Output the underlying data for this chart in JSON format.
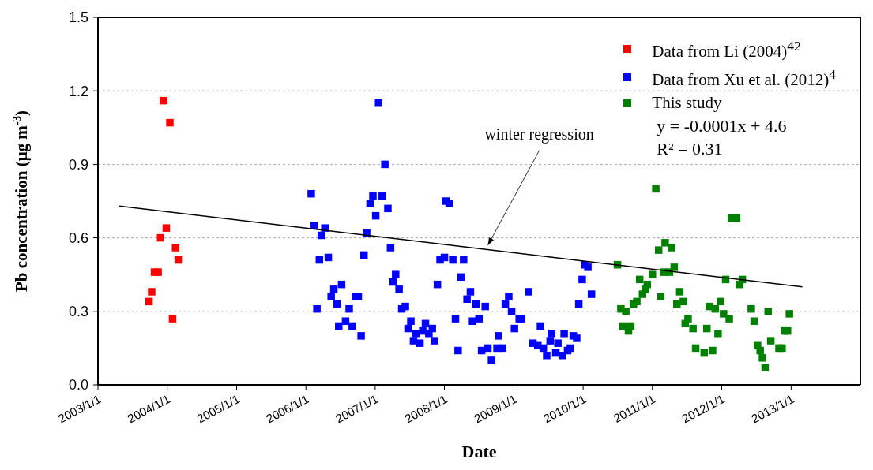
{
  "chart_data": {
    "type": "scatter",
    "xlabel": "Date",
    "ylabel": "Pb concentration (μg m$^{-3}$)",
    "xlim": [
      "2003-01-01",
      "2014-01-01"
    ],
    "xticks": [
      {
        "value": "2003-01-01",
        "label": "2003/1/1"
      },
      {
        "value": "2004-01-01",
        "label": "2004/1/1"
      },
      {
        "value": "2005-01-01",
        "label": "2005/1/1"
      },
      {
        "value": "2006-01-01",
        "label": "2006/1/1"
      },
      {
        "value": "2007-01-01",
        "label": "2007/1/1"
      },
      {
        "value": "2008-01-01",
        "label": "2008/1/1"
      },
      {
        "value": "2009-01-01",
        "label": "2009/1/1"
      },
      {
        "value": "2010-01-01",
        "label": "2010/1/1"
      },
      {
        "value": "2011-01-01",
        "label": "2011/1/1"
      },
      {
        "value": "2012-01-01",
        "label": "2012/1/1"
      },
      {
        "value": "2013-01-01",
        "label": "2013/1/1"
      }
    ],
    "ylim": [
      0,
      1.5
    ],
    "yticks": [
      {
        "value": 0,
        "label": "0.0"
      },
      0.3,
      0.6,
      0.9,
      1.2,
      1.5
    ],
    "grid": "y",
    "legend": "top right",
    "marker": "square",
    "series": [
      {
        "name": "Data from Li (2004)$^{42}$",
        "color": "#ff0000",
        "x": [
          "2003-09-27",
          "2003-10-11",
          "2003-10-26",
          "2003-11-14",
          "2003-11-27",
          "2003-12-13",
          "2003-12-27",
          "2004-01-15",
          "2004-01-29",
          "2004-02-14",
          "2004-02-28"
        ],
        "values": [
          0.34,
          0.38,
          0.46,
          0.46,
          0.6,
          1.16,
          0.64,
          1.07,
          0.27,
          0.56,
          0.51
        ]
      },
      {
        "name": "Data from Xu et al. (2012)$^{4}$",
        "color": "#0000ff",
        "x": [
          "2006-01-29",
          "2006-02-14",
          "2006-02-28",
          "2006-03-13",
          "2006-03-23",
          "2006-04-11",
          "2006-04-29",
          "2006-05-14",
          "2006-05-28",
          "2006-06-13",
          "2006-06-23",
          "2006-07-08",
          "2006-07-29",
          "2006-08-17",
          "2006-09-02",
          "2006-09-20",
          "2006-10-04",
          "2006-10-19",
          "2006-11-03",
          "2006-11-17",
          "2006-12-05",
          "2006-12-20",
          "2007-01-04",
          "2007-01-19",
          "2007-02-07",
          "2007-02-21",
          "2007-03-09",
          "2007-03-23",
          "2007-04-04",
          "2007-04-19",
          "2007-05-07",
          "2007-05-21",
          "2007-06-09",
          "2007-06-23",
          "2007-07-08",
          "2007-07-22",
          "2007-08-03",
          "2007-08-25",
          "2007-09-09",
          "2007-09-23",
          "2007-10-11",
          "2007-10-29",
          "2007-11-10",
          "2007-11-25",
          "2007-12-09",
          "2008-01-01",
          "2008-01-08",
          "2008-01-26",
          "2008-02-14",
          "2008-02-28",
          "2008-03-13",
          "2008-03-27",
          "2008-04-11",
          "2008-04-29",
          "2008-05-17",
          "2008-05-28",
          "2008-06-16",
          "2008-07-01",
          "2008-07-15",
          "2008-08-03",
          "2008-08-17",
          "2008-09-05",
          "2008-10-04",
          "2008-10-11",
          "2008-11-03",
          "2008-11-17",
          "2008-12-05",
          "2008-12-20",
          "2009-01-04",
          "2009-01-29",
          "2009-02-10",
          "2009-03-20",
          "2009-04-11",
          "2009-05-07",
          "2009-05-21",
          "2009-06-05",
          "2009-06-23",
          "2009-07-11",
          "2009-07-19",
          "2009-08-10",
          "2009-08-21",
          "2009-09-13",
          "2009-09-23",
          "2009-10-11",
          "2009-10-26",
          "2009-11-10",
          "2009-11-28",
          "2009-12-09",
          "2009-12-27",
          "2010-01-08",
          "2010-01-26",
          "2010-02-14"
        ],
        "values": [
          0.78,
          0.65,
          0.31,
          0.51,
          0.61,
          0.64,
          0.52,
          0.36,
          0.39,
          0.33,
          0.24,
          0.41,
          0.26,
          0.31,
          0.24,
          0.36,
          0.36,
          0.2,
          0.53,
          0.62,
          0.74,
          0.77,
          0.69,
          1.15,
          0.77,
          0.9,
          0.72,
          0.56,
          0.42,
          0.45,
          0.39,
          0.31,
          0.32,
          0.23,
          0.26,
          0.18,
          0.21,
          0.17,
          0.22,
          0.25,
          0.21,
          0.23,
          0.18,
          0.41,
          0.51,
          0.52,
          0.75,
          0.74,
          0.51,
          0.27,
          0.14,
          0.44,
          0.51,
          0.35,
          0.38,
          0.26,
          0.33,
          0.27,
          0.14,
          0.32,
          0.15,
          0.1,
          0.15,
          0.2,
          0.15,
          0.33,
          0.36,
          0.3,
          0.23,
          0.27,
          0.27,
          0.38,
          0.17,
          0.16,
          0.24,
          0.15,
          0.12,
          0.18,
          0.21,
          0.13,
          0.17,
          0.12,
          0.21,
          0.14,
          0.15,
          0.2,
          0.19,
          0.33,
          0.43,
          0.49,
          0.48,
          0.37
        ]
      },
      {
        "name": "This study",
        "color": "#008000",
        "x": [
          "2010-07-01",
          "2010-07-19",
          "2010-07-29",
          "2010-08-14",
          "2010-08-28",
          "2010-09-09",
          "2010-09-23",
          "2010-10-11",
          "2010-10-26",
          "2010-11-10",
          "2010-11-25",
          "2010-12-05",
          "2011-01-01",
          "2011-01-19",
          "2011-02-03",
          "2011-02-14",
          "2011-03-02",
          "2011-03-09",
          "2011-04-01",
          "2011-04-11",
          "2011-04-26",
          "2011-05-10",
          "2011-05-25",
          "2011-06-13",
          "2011-06-23",
          "2011-07-08",
          "2011-08-03",
          "2011-08-17",
          "2011-10-01",
          "2011-10-15",
          "2011-10-29",
          "2011-11-14",
          "2011-11-28",
          "2011-12-13",
          "2011-12-27",
          "2012-01-11",
          "2012-01-22",
          "2012-02-10",
          "2012-02-21",
          "2012-03-20",
          "2012-04-04",
          "2012-04-19",
          "2012-06-05",
          "2012-06-20",
          "2012-07-08",
          "2012-07-22",
          "2012-08-03",
          "2012-08-17",
          "2012-09-02",
          "2012-09-16",
          "2012-10-29",
          "2012-11-14",
          "2012-11-28",
          "2012-12-13",
          "2012-12-23"
        ],
        "values": [
          0.49,
          0.31,
          0.24,
          0.3,
          0.22,
          0.24,
          0.33,
          0.34,
          0.43,
          0.37,
          0.39,
          0.41,
          0.45,
          0.8,
          0.55,
          0.36,
          0.46,
          0.58,
          0.46,
          0.56,
          0.48,
          0.33,
          0.38,
          0.34,
          0.25,
          0.27,
          0.23,
          0.15,
          0.13,
          0.23,
          0.32,
          0.14,
          0.31,
          0.21,
          0.34,
          0.29,
          0.43,
          0.27,
          0.68,
          0.68,
          0.41,
          0.43,
          0.31,
          0.26,
          0.16,
          0.14,
          0.11,
          0.07,
          0.3,
          0.18,
          0.15,
          0.15,
          0.22,
          0.22,
          0.29
        ]
      },
      {
        "type": "line",
        "marker": "none",
        "color": "#000000",
        "x": [
          "2003-04-23",
          "2013-03-01"
        ],
        "values": [
          0.73,
          0.4
        ]
      }
    ],
    "annotations": [
      {
        "text": "winter regression",
        "x": "2008-08-17",
        "y": 0.57
      },
      "y = -0.0001x + 4.6",
      "R² = 0.31"
    ]
  }
}
